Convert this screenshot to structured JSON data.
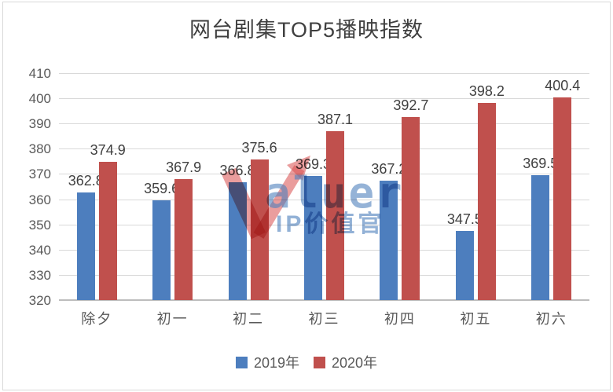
{
  "title": "网台剧集TOP5播映指数",
  "colors": {
    "series_2019": "#4D7EBE",
    "series_2020": "#C0504D",
    "gridline": "#D9D9D9",
    "axis_text": "#595959",
    "data_label_text": "#404040",
    "watermark_red": "#D85C5C",
    "watermark_blue": "#4F81BD"
  },
  "legend": [
    {
      "label": "2019年",
      "color": "#4D7EBE"
    },
    {
      "label": "2020年",
      "color": "#C0504D"
    }
  ],
  "watermark": {
    "brand": "Valuer",
    "brand_letters_after_v": "aluer",
    "subtitle": "IP价值官"
  },
  "chart_data": {
    "type": "bar",
    "title": "网台剧集TOP5播映指数",
    "categories": [
      "除夕",
      "初一",
      "初二",
      "初三",
      "初四",
      "初五",
      "初六"
    ],
    "series": [
      {
        "name": "2019年",
        "color": "#4D7EBE",
        "values": [
          362.8,
          359.6,
          366.8,
          369.3,
          367.2,
          347.5,
          369.5
        ]
      },
      {
        "name": "2020年",
        "color": "#C0504D",
        "values": [
          374.9,
          367.9,
          375.6,
          387.1,
          392.7,
          398.2,
          400.4
        ]
      }
    ],
    "xlabel": "",
    "ylabel": "",
    "ylim": [
      320,
      410
    ],
    "y_ticks": [
      410,
      400,
      390,
      380,
      370,
      360,
      350,
      340,
      330,
      320
    ],
    "grid": true,
    "legend_position": "bottom",
    "data_labels": true
  }
}
